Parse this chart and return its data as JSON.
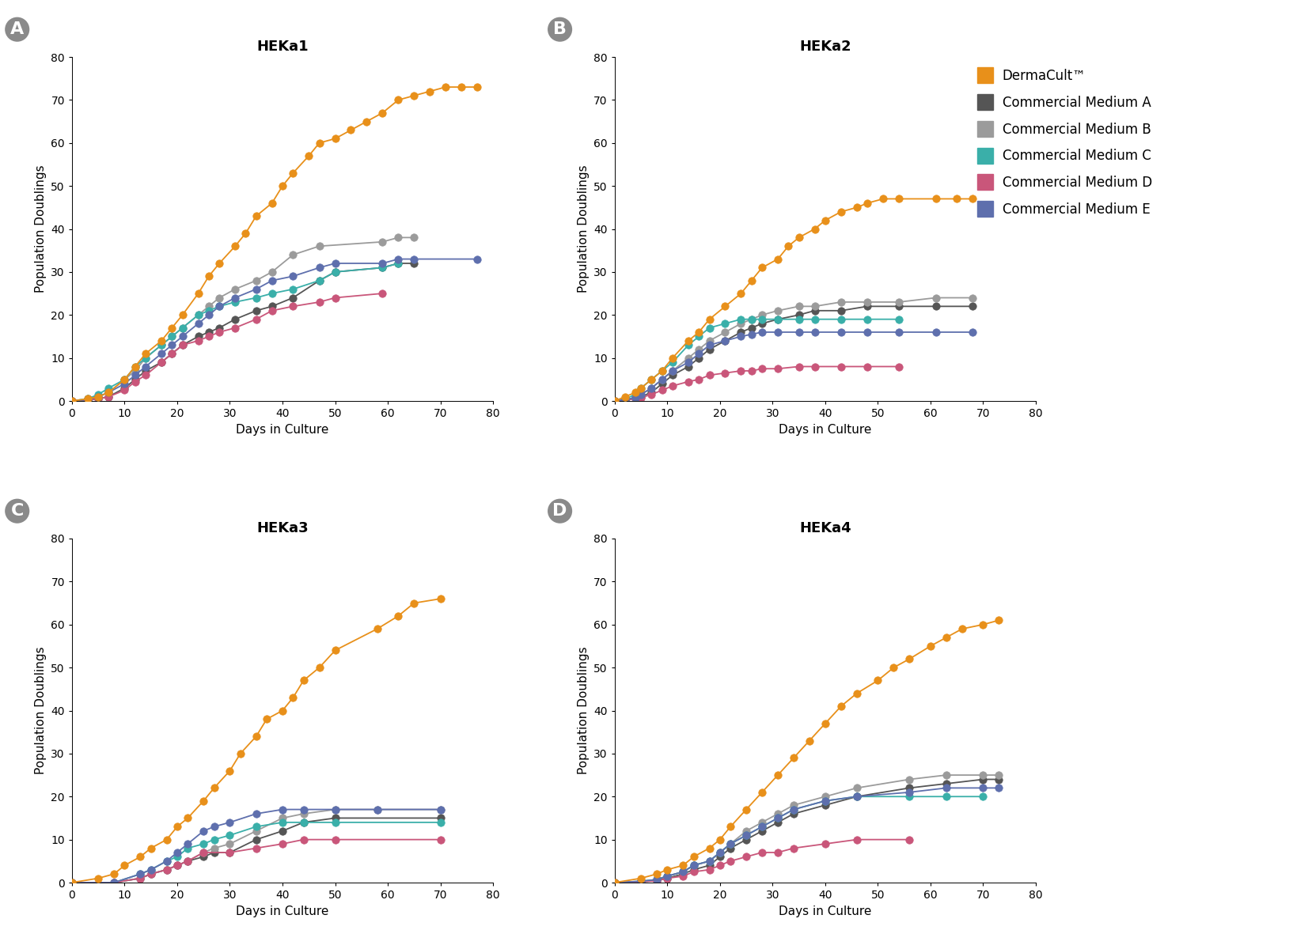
{
  "panels": [
    {
      "label": "A",
      "title": "HEKa1",
      "series": {
        "DermaCult": {
          "x": [
            0,
            3,
            5,
            7,
            10,
            12,
            14,
            17,
            19,
            21,
            24,
            26,
            28,
            31,
            33,
            35,
            38,
            40,
            42,
            45,
            47,
            50,
            53,
            56,
            59,
            62,
            65,
            68,
            71,
            74,
            77
          ],
          "y": [
            0,
            0.5,
            1,
            2,
            5,
            8,
            11,
            14,
            17,
            20,
            25,
            29,
            32,
            36,
            39,
            43,
            46,
            50,
            53,
            57,
            60,
            61,
            63,
            65,
            67,
            70,
            71,
            72,
            73,
            73,
            73
          ]
        },
        "MedA": {
          "x": [
            0,
            3,
            5,
            7,
            10,
            12,
            14,
            17,
            19,
            21,
            24,
            26,
            28,
            31,
            35,
            38,
            42,
            47,
            50,
            59,
            62,
            65
          ],
          "y": [
            0,
            0.3,
            0.5,
            1,
            3,
            5,
            7,
            9,
            11,
            13,
            15,
            16,
            17,
            19,
            21,
            22,
            24,
            28,
            30,
            31,
            32,
            32
          ]
        },
        "MedB": {
          "x": [
            0,
            3,
            5,
            7,
            10,
            12,
            14,
            17,
            19,
            21,
            24,
            26,
            28,
            31,
            35,
            38,
            42,
            47,
            59,
            62,
            65
          ],
          "y": [
            0,
            0.5,
            1,
            2,
            5,
            7,
            10,
            13,
            15,
            17,
            20,
            22,
            24,
            26,
            28,
            30,
            34,
            36,
            37,
            38,
            38
          ]
        },
        "MedC": {
          "x": [
            0,
            3,
            5,
            7,
            10,
            12,
            14,
            17,
            19,
            21,
            24,
            26,
            28,
            31,
            35,
            38,
            42,
            47,
            50,
            59,
            62
          ],
          "y": [
            0,
            0.5,
            1.5,
            3,
            5,
            8,
            10,
            13,
            15,
            17,
            20,
            21,
            22,
            23,
            24,
            25,
            26,
            28,
            30,
            31,
            32
          ]
        },
        "MedD": {
          "x": [
            0,
            3,
            5,
            7,
            10,
            12,
            14,
            17,
            19,
            21,
            24,
            26,
            28,
            31,
            35,
            38,
            42,
            47,
            50,
            59
          ],
          "y": [
            0,
            0.2,
            0.5,
            1,
            2.5,
            4.5,
            6,
            9,
            11,
            13,
            14,
            15,
            16,
            17,
            19,
            21,
            22,
            23,
            24,
            25
          ]
        },
        "MedE": {
          "x": [
            0,
            3,
            5,
            7,
            10,
            12,
            14,
            17,
            19,
            21,
            24,
            26,
            28,
            31,
            35,
            38,
            42,
            47,
            50,
            59,
            62,
            65,
            77
          ],
          "y": [
            0,
            0.3,
            1,
            2,
            4,
            6,
            8,
            11,
            13,
            15,
            18,
            20,
            22,
            24,
            26,
            28,
            29,
            31,
            32,
            32,
            33,
            33,
            33
          ]
        }
      }
    },
    {
      "label": "B",
      "title": "HEKa2",
      "series": {
        "DermaCult": {
          "x": [
            0,
            2,
            4,
            5,
            7,
            9,
            11,
            14,
            16,
            18,
            21,
            24,
            26,
            28,
            31,
            33,
            35,
            38,
            40,
            43,
            46,
            48,
            51,
            54,
            61,
            65,
            68
          ],
          "y": [
            0,
            1,
            2,
            3,
            5,
            7,
            10,
            14,
            16,
            19,
            22,
            25,
            28,
            31,
            33,
            36,
            38,
            40,
            42,
            44,
            45,
            46,
            47,
            47,
            47,
            47,
            47
          ]
        },
        "MedA": {
          "x": [
            0,
            2,
            4,
            5,
            7,
            9,
            11,
            14,
            16,
            18,
            21,
            24,
            26,
            28,
            31,
            35,
            38,
            43,
            48,
            54,
            61,
            68
          ],
          "y": [
            0,
            0.3,
            0.7,
            1,
            2,
            4,
            6,
            8,
            10,
            12,
            14,
            16,
            17,
            18,
            19,
            20,
            21,
            21,
            22,
            22,
            22,
            22
          ]
        },
        "MedB": {
          "x": [
            0,
            2,
            4,
            5,
            7,
            9,
            11,
            14,
            16,
            18,
            21,
            24,
            26,
            28,
            31,
            35,
            38,
            43,
            48,
            54,
            61,
            68
          ],
          "y": [
            0,
            0.3,
            0.8,
            1.5,
            3,
            5,
            7,
            10,
            12,
            14,
            16,
            18,
            19,
            20,
            21,
            22,
            22,
            23,
            23,
            23,
            24,
            24
          ]
        },
        "MedC": {
          "x": [
            0,
            2,
            4,
            5,
            7,
            9,
            11,
            14,
            16,
            18,
            21,
            24,
            26,
            28,
            31,
            35,
            38,
            43,
            48,
            54
          ],
          "y": [
            0,
            0.5,
            1.5,
            3,
            5,
            7,
            9,
            13,
            15,
            17,
            18,
            19,
            19,
            19,
            19,
            19,
            19,
            19,
            19,
            19
          ]
        },
        "MedD": {
          "x": [
            0,
            2,
            4,
            5,
            7,
            9,
            11,
            14,
            16,
            18,
            21,
            24,
            26,
            28,
            31,
            35,
            38,
            43,
            48,
            54
          ],
          "y": [
            0,
            0.2,
            0.5,
            0.8,
            1.5,
            2.5,
            3.5,
            4.5,
            5,
            6,
            6.5,
            7,
            7,
            7.5,
            7.5,
            8,
            8,
            8,
            8,
            8
          ]
        },
        "MedE": {
          "x": [
            0,
            2,
            4,
            5,
            7,
            9,
            11,
            14,
            16,
            18,
            21,
            24,
            26,
            28,
            31,
            35,
            38,
            43,
            48,
            54,
            61,
            68
          ],
          "y": [
            0,
            0.3,
            0.8,
            1.5,
            3,
            5,
            7,
            9,
            11,
            13,
            14,
            15,
            15.5,
            16,
            16,
            16,
            16,
            16,
            16,
            16,
            16,
            16
          ]
        }
      }
    },
    {
      "label": "C",
      "title": "HEKa3",
      "series": {
        "DermaCult": {
          "x": [
            0,
            5,
            8,
            10,
            13,
            15,
            18,
            20,
            22,
            25,
            27,
            30,
            32,
            35,
            37,
            40,
            42,
            44,
            47,
            50,
            58,
            62,
            65,
            70
          ],
          "y": [
            0,
            1,
            2,
            4,
            6,
            8,
            10,
            13,
            15,
            19,
            22,
            26,
            30,
            34,
            38,
            40,
            43,
            47,
            50,
            54,
            59,
            62,
            65,
            66
          ]
        },
        "MedA": {
          "x": [
            0,
            8,
            13,
            15,
            18,
            20,
            22,
            25,
            27,
            30,
            35,
            40,
            44,
            50,
            70
          ],
          "y": [
            0,
            0,
            1,
            2,
            3,
            4,
            5,
            6,
            7,
            7,
            10,
            12,
            14,
            15,
            15
          ]
        },
        "MedB": {
          "x": [
            0,
            8,
            13,
            15,
            18,
            20,
            22,
            25,
            27,
            30,
            35,
            40,
            44,
            50,
            58,
            70
          ],
          "y": [
            0,
            0,
            1,
            2,
            3,
            4,
            5,
            7,
            8,
            9,
            12,
            15,
            16,
            17,
            17,
            17
          ]
        },
        "MedC": {
          "x": [
            0,
            8,
            13,
            15,
            18,
            20,
            22,
            25,
            27,
            30,
            35,
            40,
            44,
            50,
            70
          ],
          "y": [
            0,
            0,
            2,
            3,
            5,
            6,
            8,
            9,
            10,
            11,
            13,
            14,
            14,
            14,
            14
          ]
        },
        "MedD": {
          "x": [
            0,
            8,
            13,
            15,
            18,
            20,
            22,
            25,
            30,
            35,
            40,
            44,
            50,
            70
          ],
          "y": [
            0,
            0,
            1,
            2,
            3,
            4,
            5,
            7,
            7,
            8,
            9,
            10,
            10,
            10
          ]
        },
        "MedE": {
          "x": [
            0,
            8,
            13,
            15,
            18,
            20,
            22,
            25,
            27,
            30,
            35,
            40,
            44,
            50,
            58,
            70
          ],
          "y": [
            0,
            0,
            2,
            3,
            5,
            7,
            9,
            12,
            13,
            14,
            16,
            17,
            17,
            17,
            17,
            17
          ]
        }
      }
    },
    {
      "label": "D",
      "title": "HEKa4",
      "series": {
        "DermaCult": {
          "x": [
            0,
            5,
            8,
            10,
            13,
            15,
            18,
            20,
            22,
            25,
            28,
            31,
            34,
            37,
            40,
            43,
            46,
            50,
            53,
            56,
            60,
            63,
            66,
            70,
            73
          ],
          "y": [
            0,
            1,
            2,
            3,
            4,
            6,
            8,
            10,
            13,
            17,
            21,
            25,
            29,
            33,
            37,
            41,
            44,
            47,
            50,
            52,
            55,
            57,
            59,
            60,
            61
          ]
        },
        "MedA": {
          "x": [
            0,
            5,
            8,
            10,
            13,
            15,
            18,
            20,
            22,
            25,
            28,
            31,
            34,
            40,
            46,
            56,
            63,
            70,
            73
          ],
          "y": [
            0,
            0.2,
            0.5,
            1,
            2,
            3,
            4,
            6,
            8,
            10,
            12,
            14,
            16,
            18,
            20,
            22,
            23,
            24,
            24
          ]
        },
        "MedB": {
          "x": [
            0,
            5,
            8,
            10,
            13,
            15,
            18,
            20,
            22,
            25,
            28,
            31,
            34,
            40,
            46,
            56,
            63,
            70,
            73
          ],
          "y": [
            0,
            0.3,
            0.7,
            1.5,
            2.5,
            4,
            5,
            7,
            9,
            12,
            14,
            16,
            18,
            20,
            22,
            24,
            25,
            25,
            25
          ]
        },
        "MedC": {
          "x": [
            0,
            5,
            8,
            10,
            13,
            15,
            18,
            20,
            22,
            25,
            28,
            31,
            34,
            40,
            46,
            56,
            63,
            70
          ],
          "y": [
            0,
            0.3,
            0.7,
            1.5,
            2.5,
            4,
            5,
            7,
            9,
            11,
            13,
            15,
            17,
            19,
            20,
            20,
            20,
            20
          ]
        },
        "MedD": {
          "x": [
            0,
            5,
            8,
            10,
            13,
            15,
            18,
            20,
            22,
            25,
            28,
            31,
            34,
            40,
            46,
            56
          ],
          "y": [
            0,
            0.2,
            0.4,
            1,
            1.5,
            2.5,
            3,
            4,
            5,
            6,
            7,
            7,
            8,
            9,
            10,
            10
          ]
        },
        "MedE": {
          "x": [
            0,
            5,
            8,
            10,
            13,
            15,
            18,
            20,
            22,
            25,
            28,
            31,
            34,
            40,
            46,
            56,
            63,
            70,
            73
          ],
          "y": [
            0,
            0.3,
            0.7,
            1.5,
            2.5,
            4,
            5,
            7,
            9,
            11,
            13,
            15,
            17,
            19,
            20,
            21,
            22,
            22,
            22
          ]
        }
      }
    }
  ],
  "colors": {
    "DermaCult": "#E8901A",
    "MedA": "#555555",
    "MedB": "#9B9B9B",
    "MedC": "#3AAFA9",
    "MedD": "#C9567A",
    "MedE": "#5E6FAD"
  },
  "legend_labels": {
    "DermaCult": "DermaCult™",
    "MedA": "Commercial Medium A",
    "MedB": "Commercial Medium B",
    "MedC": "Commercial Medium C",
    "MedD": "Commercial Medium D",
    "MedE": "Commercial Medium E"
  },
  "xlabel": "Days in Culture",
  "ylabel": "Population Doublings",
  "xlim": [
    0,
    80
  ],
  "ylim": [
    0,
    80
  ],
  "xticks": [
    0,
    10,
    20,
    30,
    40,
    50,
    60,
    70,
    80
  ],
  "yticks": [
    0,
    10,
    20,
    30,
    40,
    50,
    60,
    70,
    80
  ],
  "background_color": "#ffffff",
  "marker": "o",
  "markersize": 7,
  "linewidth": 1.3,
  "label_circle_color": "#8a8a8a",
  "label_fontsize": 16,
  "title_fontsize": 13,
  "axis_fontsize": 10,
  "xlabel_fontsize": 11,
  "ylabel_fontsize": 11,
  "legend_fontsize": 12
}
